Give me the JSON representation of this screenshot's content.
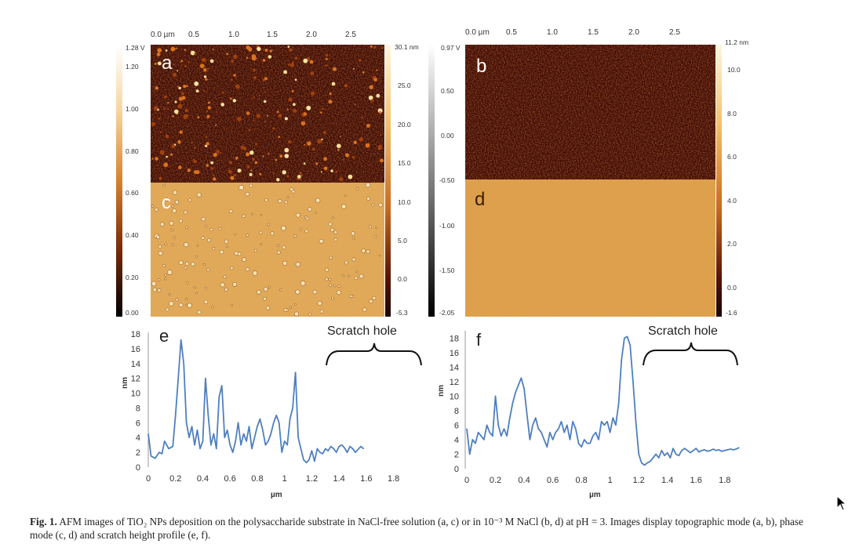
{
  "figure": {
    "panels": {
      "a": "a",
      "b": "b",
      "c": "c",
      "d": "d",
      "e": "e",
      "f": "f"
    },
    "afm_left": {
      "x_ticks": [
        "0.0 µm",
        "0.5",
        "1.0",
        "1.5",
        "2.0",
        "2.5"
      ],
      "phase_scale": [
        "1.28 V",
        "1.20",
        "1.00",
        "0.80",
        "0.60",
        "0.40",
        "0.20",
        "0.00"
      ],
      "height_scale": [
        "30.1 nm",
        "25.0",
        "20.0",
        "15.0",
        "10.0",
        "5.0",
        "0.0",
        "-5.3"
      ]
    },
    "afm_right": {
      "x_ticks": [
        "0.0 µm",
        "0.5",
        "1.0",
        "1.5",
        "2.0",
        "2.5"
      ],
      "phase_scale": [
        "0.97 V",
        "0.50",
        "0.00",
        "-0.50",
        "-1.00",
        "-1.50",
        "-2.05"
      ],
      "height_scale": [
        "11.2 nm",
        "10.0",
        "8.0",
        "6.0",
        "4.0",
        "2.0",
        "0.0",
        "-1.6"
      ]
    },
    "scratch_label": "Scratch hole",
    "y_axis_label": "nm",
    "x_axis_label": "µm",
    "colors": {
      "afm_dark": "#3a0a02",
      "afm_phase": "#e0a24e",
      "profile_line": "#4f7fc0"
    }
  },
  "caption": {
    "label": "Fig. 1.",
    "text": " AFM images of TiO₂ NPs deposition on the polysaccharide substrate in NaCl-free solution (a, c) or in 10⁻³ M NaCl (b, d) at pH = 3. Images display topographic mode (a, b), phase mode (c, d) and scratch height profile (e, f)."
  },
  "chart_data": [
    {
      "type": "line",
      "title": "",
      "xlabel": "µm",
      "ylabel": "nm",
      "xlim": [
        0,
        1.9
      ],
      "ylim": [
        0,
        18
      ],
      "x_ticks": [
        0,
        0.2,
        0.4,
        0.6,
        0.8,
        1,
        1.2,
        1.4,
        1.6,
        1.8
      ],
      "y_ticks": [
        0,
        2,
        4,
        6,
        8,
        10,
        12,
        14,
        16,
        18
      ],
      "series": [
        {
          "x": [
            0,
            0.02,
            0.05,
            0.08,
            0.1,
            0.12,
            0.15,
            0.18,
            0.2,
            0.22,
            0.24,
            0.26,
            0.28,
            0.3,
            0.32,
            0.34,
            0.36,
            0.38,
            0.4,
            0.42,
            0.44,
            0.46,
            0.48,
            0.5,
            0.52,
            0.54,
            0.56,
            0.58,
            0.6,
            0.62,
            0.64,
            0.66,
            0.68,
            0.7,
            0.72,
            0.74,
            0.76,
            0.78,
            0.8,
            0.82,
            0.84,
            0.86,
            0.88,
            0.9,
            0.92,
            0.94,
            0.96,
            0.98,
            1.0,
            1.02,
            1.04,
            1.06,
            1.08,
            1.1,
            1.12,
            1.14,
            1.16,
            1.18,
            1.2,
            1.22,
            1.24,
            1.26,
            1.28,
            1.3,
            1.32,
            1.34,
            1.36,
            1.38,
            1.4,
            1.42,
            1.44,
            1.46,
            1.48,
            1.5,
            1.52,
            1.54,
            1.56,
            1.58
          ],
          "values": [
            4.5,
            1.5,
            1.2,
            2.0,
            1.8,
            3.5,
            2.5,
            2.8,
            7.0,
            12.0,
            17.2,
            14.0,
            6.0,
            4.0,
            5.5,
            3.0,
            5.0,
            2.5,
            3.5,
            12.0,
            7.0,
            3.0,
            4.5,
            2.5,
            9.5,
            11.0,
            4.0,
            5.0,
            3.0,
            2.0,
            3.5,
            6.0,
            3.0,
            4.5,
            3.5,
            5.5,
            2.5,
            4.0,
            5.5,
            6.5,
            5.0,
            3.0,
            3.5,
            4.5,
            6.0,
            7.0,
            6.0,
            2.0,
            3.5,
            3.0,
            6.5,
            8.0,
            12.8,
            4.0,
            2.5,
            1.0,
            0.6,
            1.0,
            2.2,
            0.8,
            2.5,
            2.0,
            1.8,
            2.5,
            2.2,
            2.8,
            2.5,
            2.0,
            2.8,
            3.0,
            2.6,
            2.0,
            2.8,
            2.5,
            2.0,
            2.4,
            2.8,
            2.5
          ]
        }
      ]
    },
    {
      "type": "line",
      "title": "",
      "xlabel": "µm",
      "ylabel": "nm",
      "xlim": [
        0,
        1.9
      ],
      "ylim": [
        0,
        19
      ],
      "x_ticks": [
        0,
        0.2,
        0.4,
        0.6,
        0.8,
        1,
        1.2,
        1.4,
        1.6,
        1.8
      ],
      "y_ticks": [
        0,
        2,
        4,
        6,
        8,
        10,
        12,
        14,
        16,
        18
      ],
      "series": [
        {
          "x": [
            0,
            0.02,
            0.04,
            0.06,
            0.08,
            0.1,
            0.12,
            0.14,
            0.16,
            0.18,
            0.2,
            0.22,
            0.24,
            0.26,
            0.28,
            0.3,
            0.32,
            0.34,
            0.36,
            0.38,
            0.4,
            0.42,
            0.44,
            0.46,
            0.48,
            0.5,
            0.52,
            0.54,
            0.56,
            0.58,
            0.6,
            0.62,
            0.64,
            0.66,
            0.68,
            0.7,
            0.72,
            0.74,
            0.76,
            0.78,
            0.8,
            0.82,
            0.84,
            0.86,
            0.88,
            0.9,
            0.92,
            0.94,
            0.96,
            0.98,
            1.0,
            1.02,
            1.04,
            1.06,
            1.08,
            1.1,
            1.12,
            1.14,
            1.16,
            1.18,
            1.2,
            1.22,
            1.24,
            1.26,
            1.28,
            1.3,
            1.32,
            1.34,
            1.36,
            1.38,
            1.4,
            1.42,
            1.44,
            1.46,
            1.48,
            1.5,
            1.52,
            1.54,
            1.56,
            1.58,
            1.6,
            1.62,
            1.64,
            1.66,
            1.68,
            1.7,
            1.72,
            1.74,
            1.76,
            1.78,
            1.8,
            1.82,
            1.84,
            1.86,
            1.88,
            1.9
          ],
          "values": [
            5.5,
            2.0,
            4.0,
            3.5,
            5.0,
            4.5,
            4.0,
            6.0,
            5.0,
            4.5,
            10.0,
            6.0,
            4.5,
            5.5,
            4.5,
            7.0,
            9.0,
            10.5,
            11.5,
            12.5,
            11.0,
            7.5,
            4.0,
            6.0,
            7.0,
            5.5,
            5.0,
            4.0,
            3.0,
            5.0,
            4.0,
            5.0,
            5.5,
            6.5,
            5.0,
            6.0,
            4.0,
            6.5,
            5.5,
            3.5,
            3.0,
            4.0,
            3.5,
            3.5,
            4.5,
            5.0,
            4.0,
            6.5,
            6.0,
            6.5,
            5.0,
            7.0,
            6.0,
            9.0,
            15.0,
            18.0,
            18.2,
            17.0,
            12.0,
            6.5,
            2.0,
            0.8,
            0.5,
            0.8,
            1.0,
            1.5,
            2.0,
            1.5,
            2.5,
            1.8,
            2.2,
            1.5,
            2.8,
            2.0,
            1.8,
            2.5,
            2.8,
            2.5,
            2.2,
            2.5,
            2.8,
            2.3,
            2.5,
            2.6,
            2.4,
            2.5,
            2.7,
            2.5,
            2.6,
            2.4,
            2.5,
            2.6,
            2.7,
            2.6,
            2.7,
            2.9
          ]
        }
      ]
    }
  ]
}
